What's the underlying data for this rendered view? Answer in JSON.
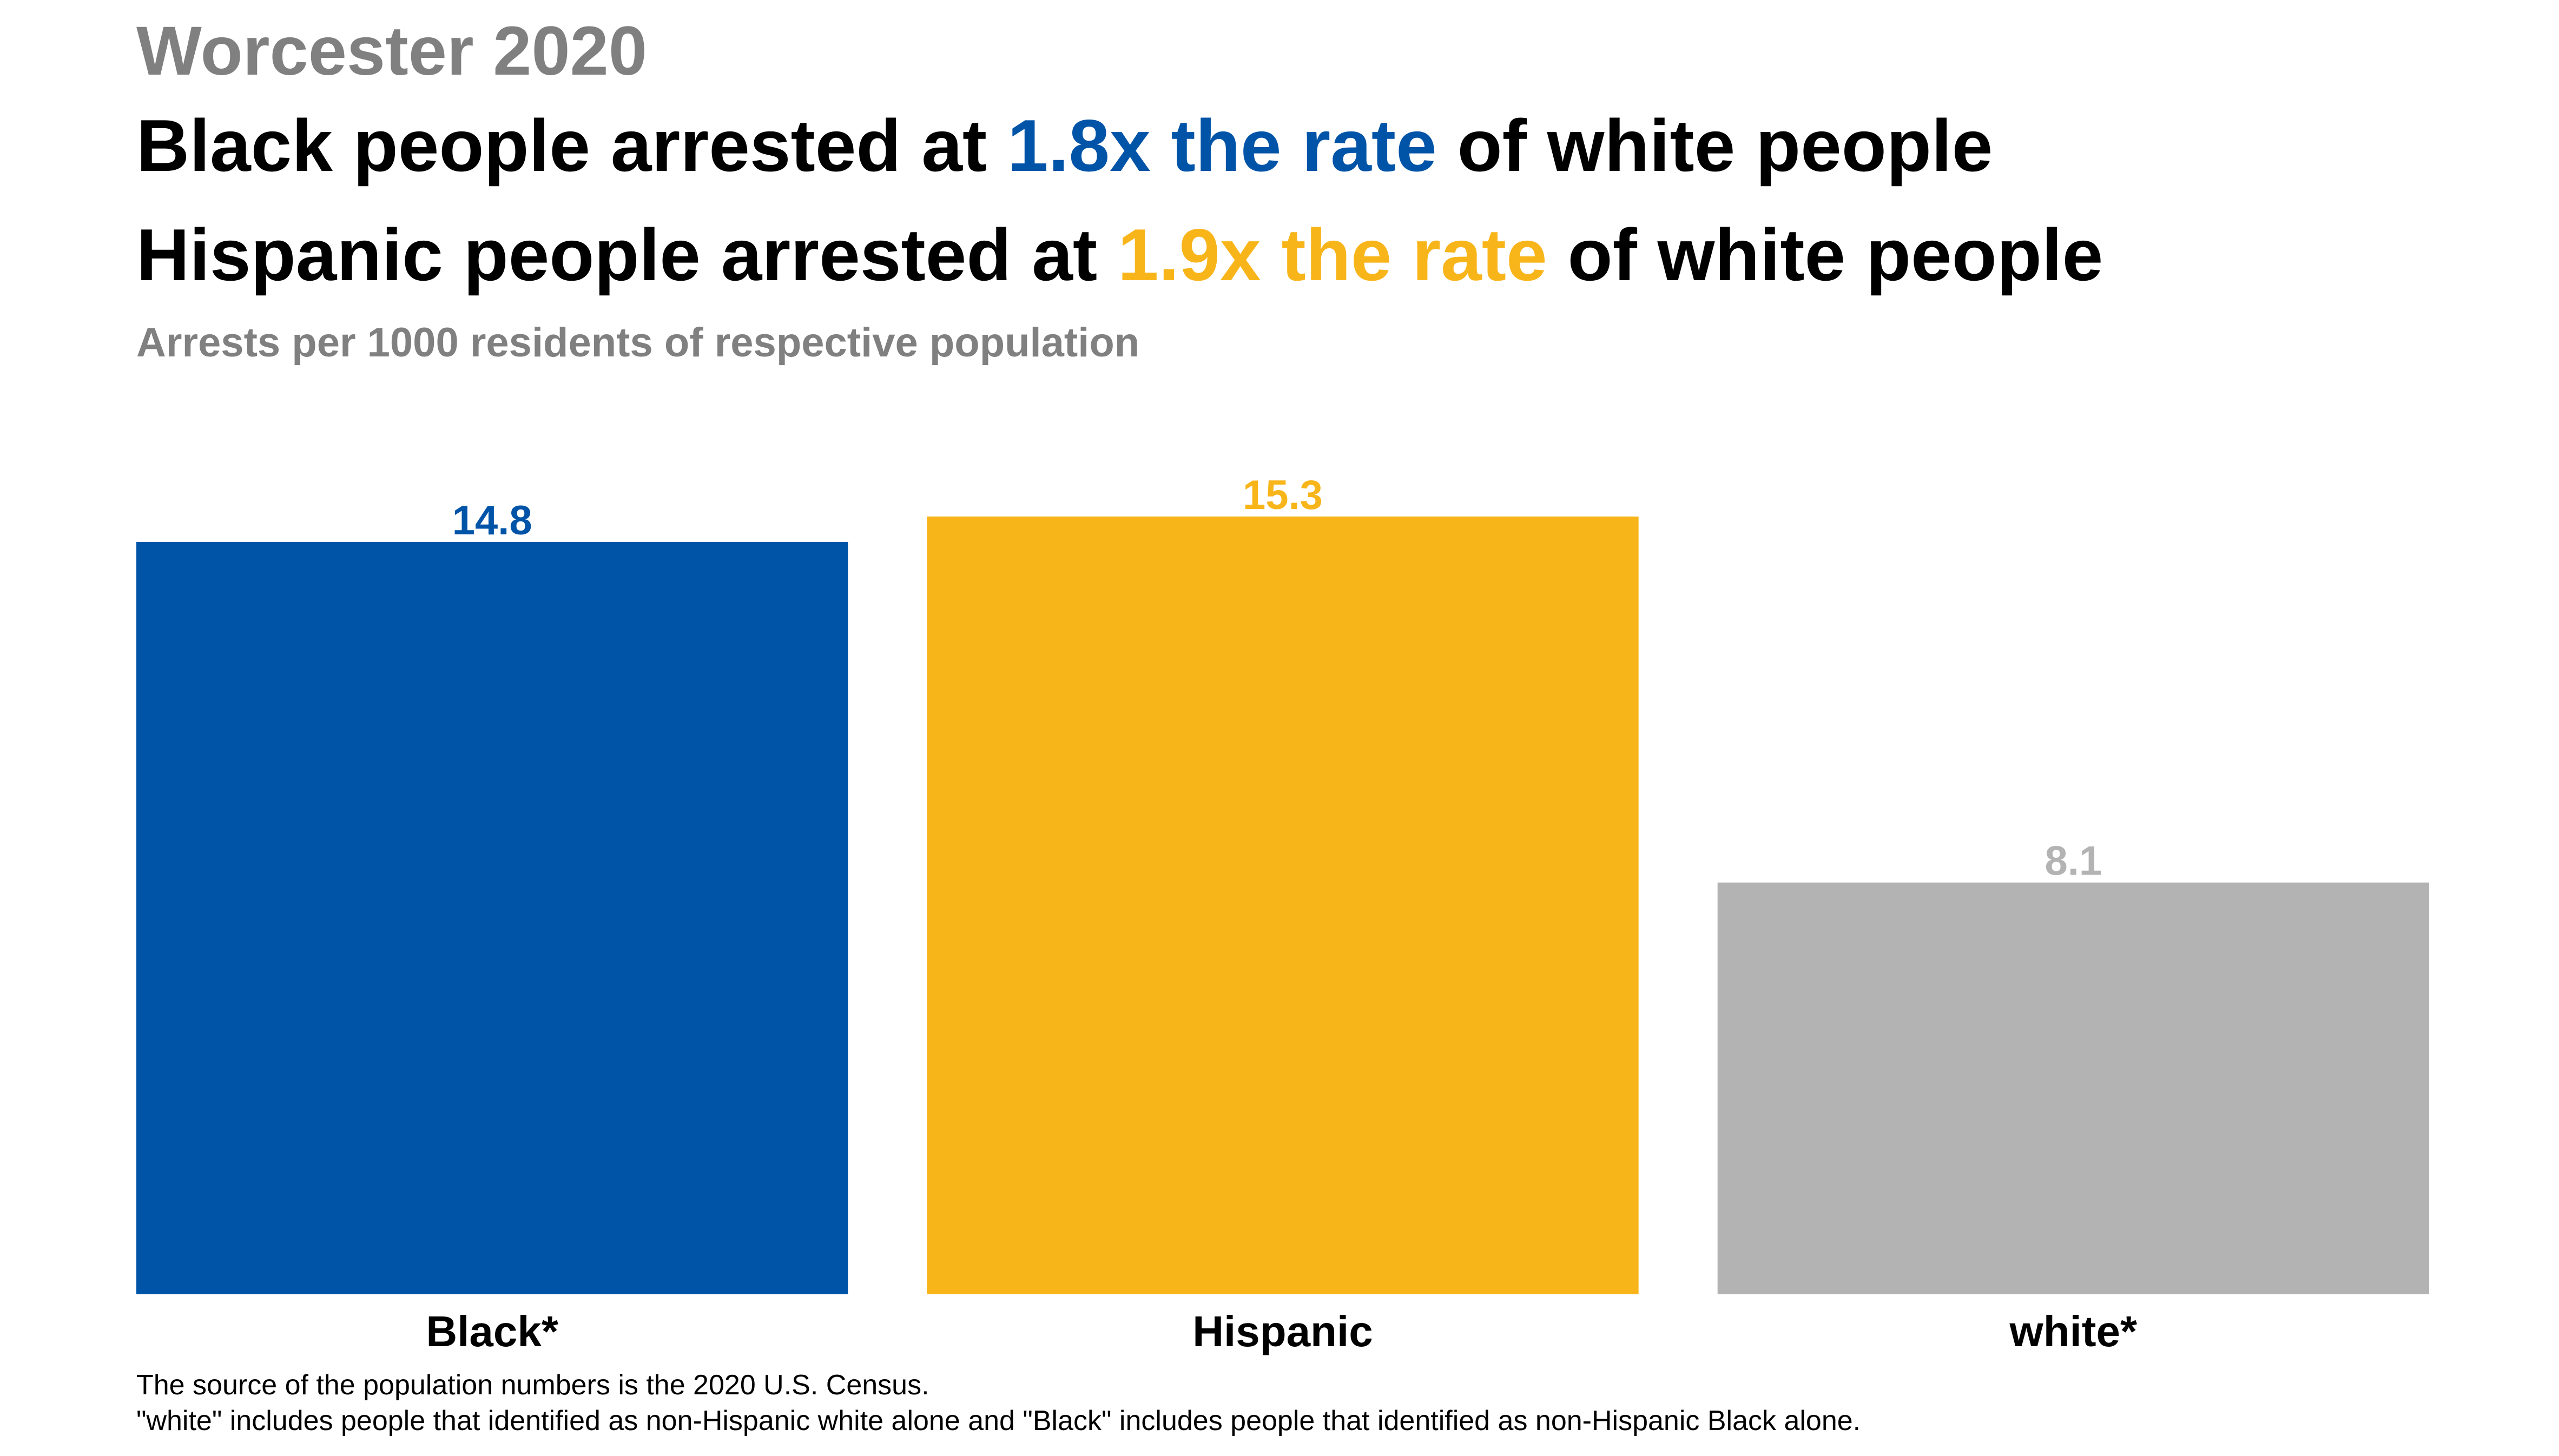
{
  "header": {
    "kicker": "Worcester 2020",
    "line1": {
      "before": "Black people arrested at ",
      "highlight": "1.8x the rate",
      "after": " of white people",
      "highlight_color": "#0054A8"
    },
    "line2": {
      "before": "Hispanic people arrested at ",
      "highlight": "1.9x the rate",
      "after": " of white people",
      "highlight_color": "#F8B51A"
    },
    "subtitle": "Arrests per 1000 residents of respective population"
  },
  "chart_data": {
    "type": "bar",
    "categories": [
      "Black*",
      "Hispanic",
      "white*"
    ],
    "values": [
      14.8,
      15.3,
      8.1
    ],
    "value_labels": [
      "14.8",
      "15.3",
      "8.1"
    ],
    "colors": [
      "#0054A8",
      "#F8B51A",
      "#B3B3B3"
    ],
    "ylabel": "Arrests per 1000 residents of respective population",
    "ylim": [
      0,
      15.3
    ],
    "grid": false,
    "legend": "none"
  },
  "footnotes": {
    "source": "The source of the population numbers is the 2020 U.S. Census.",
    "definition": "\"white\" includes people that identified as non-Hispanic white alone and \"Black\" includes people that identified as non-Hispanic Black alone."
  }
}
